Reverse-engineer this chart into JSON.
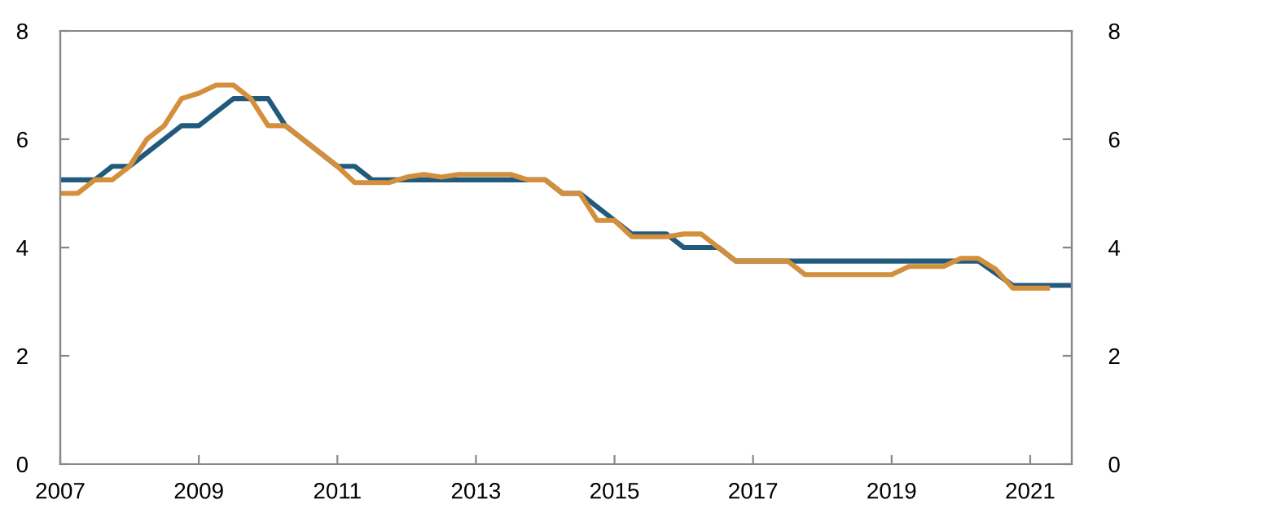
{
  "chart_data": {
    "type": "line",
    "xlim": [
      2007,
      2021.6
    ],
    "xticks": [
      2007,
      2009,
      2011,
      2013,
      2015,
      2017,
      2019,
      2021
    ],
    "ylim": [
      0,
      8
    ],
    "yticks": [
      0,
      2,
      4,
      6,
      8
    ],
    "y2lim": [
      0,
      8
    ],
    "y2ticks": [
      0,
      2,
      4,
      6,
      8
    ],
    "line_style": "solid",
    "marker": "none",
    "series": [
      {
        "color": "#215a7c",
        "x": [
          2007,
          2007.5,
          2007.75,
          2008,
          2008.75,
          2009,
          2009.5,
          2010,
          2010.25,
          2011,
          2011.25,
          2011.5,
          2014,
          2014.25,
          2014.5,
          2015.25,
          2015.75,
          2016,
          2016.5,
          2016.75,
          2020.25,
          2020.75,
          2021.6
        ],
        "values": [
          5.25,
          5.25,
          5.5,
          5.5,
          6.25,
          6.25,
          6.75,
          6.75,
          6.25,
          5.5,
          5.5,
          5.25,
          5.25,
          5.0,
          5.0,
          4.25,
          4.25,
          4.0,
          4.0,
          3.75,
          3.75,
          3.3,
          3.3
        ]
      },
      {
        "color": "#d38f3c",
        "x": [
          2007,
          2007.25,
          2007.5,
          2007.75,
          2008,
          2008.25,
          2008.5,
          2008.75,
          2009,
          2009.25,
          2009.5,
          2009.75,
          2010,
          2010.25,
          2011,
          2011.25,
          2011.75,
          2012,
          2012.25,
          2012.5,
          2012.75,
          2013.5,
          2013.75,
          2014,
          2014.25,
          2014.5,
          2014.75,
          2015,
          2015.25,
          2015.75,
          2016,
          2016.25,
          2016.75,
          2017.5,
          2017.75,
          2019,
          2019.25,
          2019.75,
          2020,
          2020.25,
          2020.5,
          2020.75,
          2021.25
        ],
        "values": [
          5.0,
          5.0,
          5.25,
          5.25,
          5.5,
          6.0,
          6.25,
          6.75,
          6.85,
          7.0,
          7.0,
          6.75,
          6.25,
          6.25,
          5.5,
          5.2,
          5.2,
          5.3,
          5.35,
          5.3,
          5.35,
          5.35,
          5.25,
          5.25,
          5.0,
          5.0,
          4.5,
          4.5,
          4.2,
          4.2,
          4.25,
          4.25,
          3.75,
          3.75,
          3.5,
          3.5,
          3.65,
          3.65,
          3.8,
          3.8,
          3.6,
          3.25,
          3.25
        ]
      }
    ]
  }
}
